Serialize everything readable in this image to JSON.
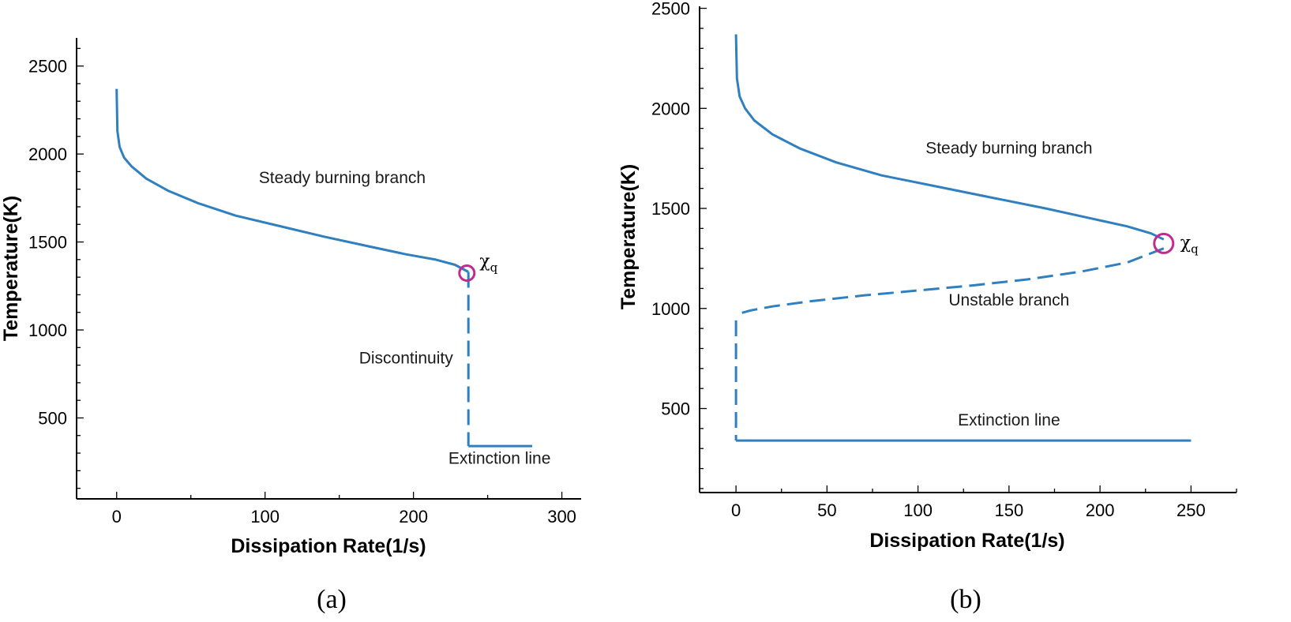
{
  "chart_data": [
    {
      "type": "line",
      "panel_label": "(a)",
      "xlabel": "Dissipation Rate(1/s)",
      "ylabel": "Temperature(K)",
      "xlim": [
        -27,
        313
      ],
      "ylim": [
        40,
        2660
      ],
      "xticks": [
        0,
        100,
        200,
        300
      ],
      "yticks": [
        500,
        1000,
        1500,
        2000,
        2500
      ],
      "series": [
        {
          "name": "Steady burning branch",
          "style": "solid",
          "color": "#2f7fc1",
          "x": [
            0,
            0.5,
            2,
            5,
            10,
            20,
            35,
            55,
            80,
            110,
            140,
            170,
            195,
            215,
            228,
            237
          ],
          "y": [
            2370,
            2130,
            2040,
            1980,
            1930,
            1860,
            1790,
            1720,
            1650,
            1590,
            1530,
            1475,
            1430,
            1400,
            1370,
            1330
          ]
        },
        {
          "name": "Discontinuity",
          "style": "dashed",
          "color": "#2f7fc1",
          "x": [
            237,
            237
          ],
          "y": [
            1330,
            340
          ]
        },
        {
          "name": "Extinction line",
          "style": "solid",
          "color": "#2f7fc1",
          "x": [
            237,
            280
          ],
          "y": [
            340,
            340
          ]
        }
      ],
      "marker": {
        "label": "χq",
        "x": 236,
        "y": 1323,
        "color": "#c22a8e"
      },
      "annotations": [
        {
          "text": "Steady burning branch",
          "x": 152,
          "y": 1835
        },
        {
          "text": "Discontinuity",
          "x": 195,
          "y": 810
        },
        {
          "text": "Extinction line",
          "x": 258,
          "y": 240
        }
      ]
    },
    {
      "type": "line",
      "panel_label": "(b)",
      "xlabel": "Dissipation Rate(1/s)",
      "ylabel": "Temperature(K)",
      "xlim": [
        -20,
        275
      ],
      "ylim": [
        80,
        2510
      ],
      "xticks": [
        0,
        50,
        100,
        150,
        200,
        250
      ],
      "yticks": [
        500,
        1000,
        1500,
        2000,
        2500
      ],
      "series": [
        {
          "name": "Steady burning branch",
          "style": "solid",
          "color": "#2f7fc1",
          "x": [
            0,
            0.5,
            2,
            5,
            10,
            20,
            35,
            55,
            80,
            110,
            140,
            170,
            195,
            215,
            228,
            235
          ],
          "y": [
            2370,
            2150,
            2060,
            2000,
            1940,
            1870,
            1800,
            1730,
            1665,
            1610,
            1555,
            1500,
            1450,
            1410,
            1375,
            1345
          ]
        },
        {
          "name": "Unstable branch",
          "style": "dashed",
          "color": "#2f7fc1",
          "x": [
            235,
            215,
            190,
            160,
            130,
            100,
            70,
            40,
            20,
            8,
            2,
            0
          ],
          "y": [
            1300,
            1230,
            1185,
            1145,
            1115,
            1090,
            1065,
            1035,
            1010,
            990,
            975,
            960
          ]
        },
        {
          "name": "Discontinuity",
          "style": "dashed",
          "color": "#2f7fc1",
          "x": [
            0,
            0
          ],
          "y": [
            940,
            340
          ]
        },
        {
          "name": "Extinction line",
          "style": "solid",
          "color": "#2f7fc1",
          "x": [
            0,
            250
          ],
          "y": [
            340,
            340
          ]
        }
      ],
      "marker": {
        "label": "χq",
        "x": 235,
        "y": 1325,
        "color": "#c22a8e"
      },
      "annotations": [
        {
          "text": "Steady burning branch",
          "x": 150,
          "y": 1775
        },
        {
          "text": "Unstable branch",
          "x": 150,
          "y": 1015
        },
        {
          "text": "Extinction line",
          "x": 150,
          "y": 415
        }
      ]
    }
  ]
}
